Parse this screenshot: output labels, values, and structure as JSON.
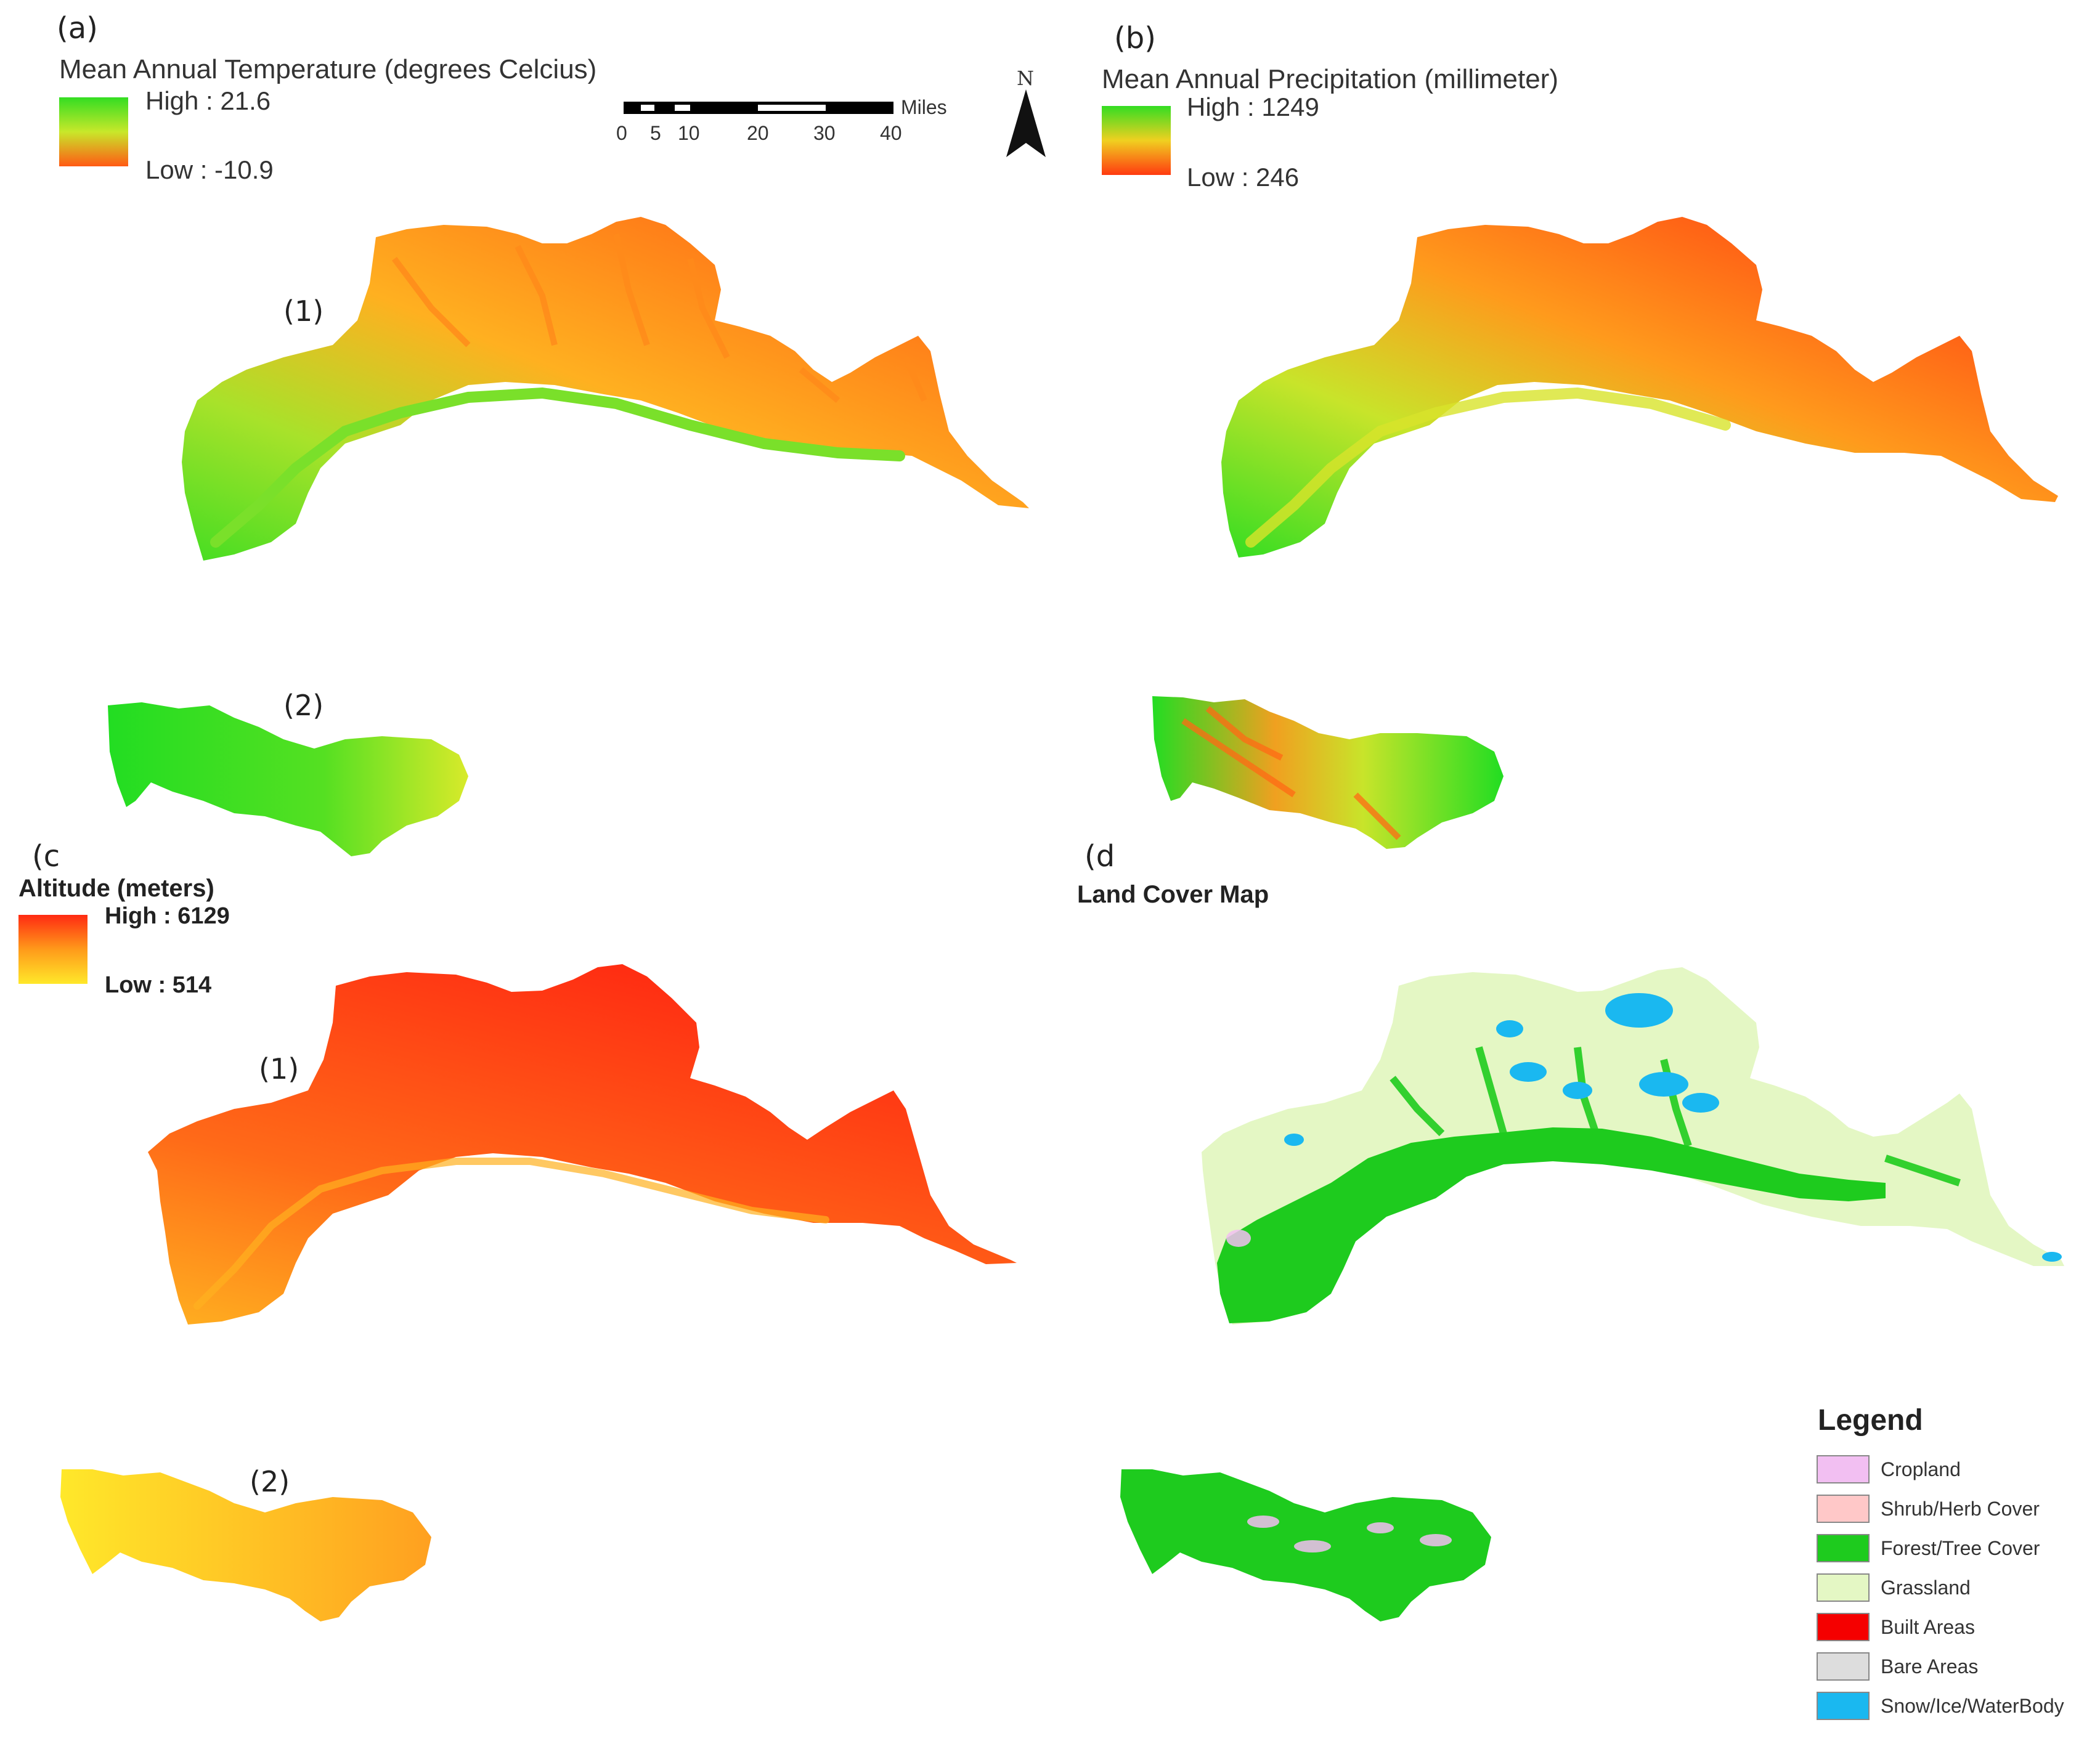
{
  "panels": {
    "a": {
      "tag": "(a)",
      "title": "Mean Annual Temperature (degrees Celcius)",
      "legend_high": "High : 21.6",
      "legend_low": "Low : -10.9",
      "ramp_colors": [
        "#33dd22",
        "#c8e82a",
        "#ff5a14"
      ],
      "region_1": "(1)",
      "region_2": "(2)"
    },
    "b": {
      "tag": "(b)",
      "title": "Mean Annual Precipitation (millimeter)",
      "legend_high": "High : 1249",
      "legend_low": "Low : 246",
      "ramp_colors": [
        "#33dd22",
        "#f0d020",
        "#ff3a10"
      ]
    },
    "c": {
      "tag": "(c",
      "title": "Altitude (meters)",
      "legend_high": "High : 6129",
      "legend_low": "Low : 514",
      "ramp_colors": [
        "#ff2a12",
        "#ff9a1a",
        "#ffe82a"
      ],
      "region_1": "(1)",
      "region_2": "(2)"
    },
    "d": {
      "tag": "(d",
      "title": "Land Cover Map"
    }
  },
  "scale_bar": {
    "unit": "Miles",
    "ticks": [
      "0",
      "5",
      "10",
      "20",
      "30",
      "40"
    ]
  },
  "north_arrow": {
    "label": "N",
    "icon": "north-arrow-icon"
  },
  "land_cover_legend": {
    "title": "Legend",
    "items": [
      {
        "label": "Cropland",
        "color": "#f2bff2"
      },
      {
        "label": "Shrub/Herb Cover",
        "color": "#ffc8c8"
      },
      {
        "label": "Forest/Tree Cover",
        "color": "#1ecb1e"
      },
      {
        "label": "Grassland",
        "color": "#e4f7c4"
      },
      {
        "label": "Built Areas",
        "color": "#f50000"
      },
      {
        "label": "Bare Areas",
        "color": "#dddddd"
      },
      {
        "label": "Snow/Ice/WaterBody",
        "color": "#1ab8f0"
      }
    ]
  }
}
